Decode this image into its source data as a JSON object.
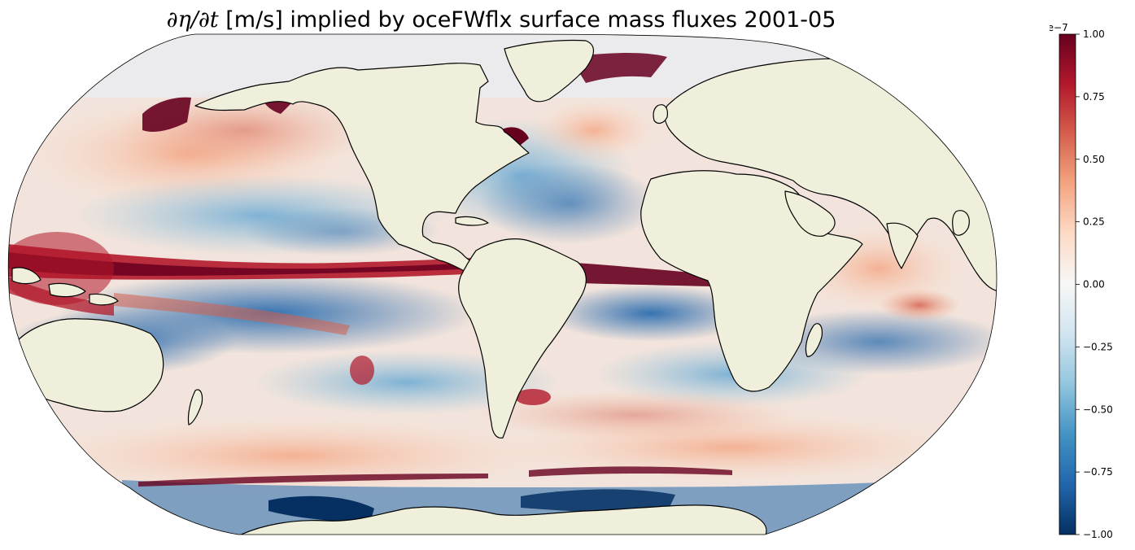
{
  "title": {
    "math": "∂η/∂t",
    "text": " [m/s] implied by oceFWflx surface mass fluxes 2001-05"
  },
  "colorbar": {
    "colormap": "RdBu_r",
    "exponent_label": "1e−7",
    "ticks": [
      "1.00",
      "0.75",
      "0.50",
      "0.25",
      "0.00",
      "−0.25",
      "−0.50",
      "−0.75",
      "−1.00"
    ],
    "tick_values": [
      1.0,
      0.75,
      0.5,
      0.25,
      0.0,
      -0.25,
      -0.5,
      -0.75,
      -1.0
    ],
    "vmin": -1.0,
    "vmax": 1.0,
    "colors": [
      "#67001f",
      "#b2182b",
      "#d6604d",
      "#f4a582",
      "#fddbc7",
      "#f7f7f7",
      "#d1e5f0",
      "#92c5de",
      "#4393c3",
      "#2166ac",
      "#053061"
    ]
  },
  "map": {
    "projection": "Robinson",
    "land_color": "#efefdb",
    "coastline_color": "#000000",
    "variable": "∂η/∂t",
    "units": "m/s"
  }
}
